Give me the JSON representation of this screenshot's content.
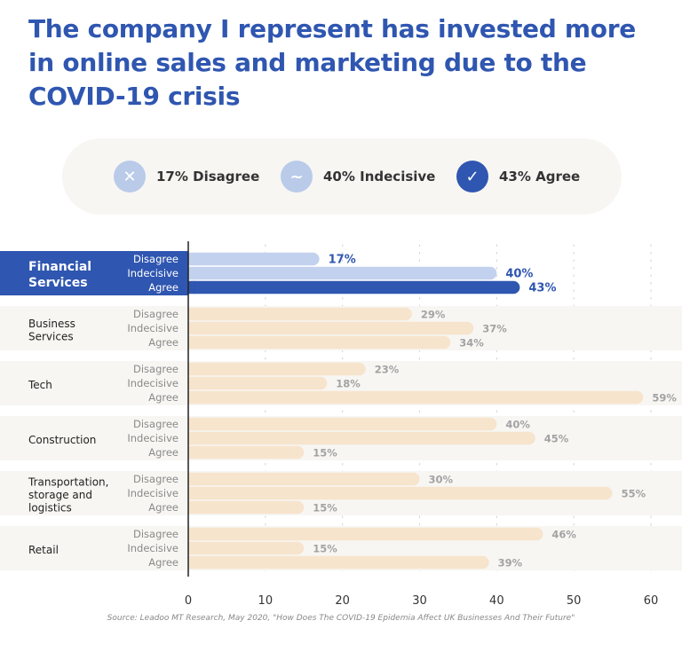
{
  "title": "The company I represent has invested more in online sales and marketing due to the COVID-19 crisis",
  "legend": [
    {
      "label": "17% Disagree",
      "icon": "x-icon",
      "glyph": "✕",
      "color": "#b9cbe9"
    },
    {
      "label": "40% Indecisive",
      "icon": "tilde-icon",
      "glyph": "~",
      "color": "#b9cbe9"
    },
    {
      "label": "43% Agree",
      "icon": "check-icon",
      "glyph": "✓",
      "color": "#2f56b0"
    }
  ],
  "colors": {
    "highlight": "#2f56b0",
    "highlight_light": "#c2d1ee",
    "bar": "#f7e4cc",
    "band": "#f7f6f3",
    "value_gray": "#a3a3a3",
    "label_gray": "#8a8a8a"
  },
  "chart_data": {
    "type": "bar",
    "orientation": "horizontal",
    "title": "The company I represent has invested more in online sales and marketing due to the COVID-19 crisis",
    "xlim": [
      0,
      60
    ],
    "xticks": [
      0,
      10,
      20,
      30,
      40,
      50,
      60
    ],
    "sub_categories": [
      "Disagree",
      "Indecisive",
      "Agree"
    ],
    "groups": [
      {
        "name": "Financial Services",
        "lines": [
          "Financial",
          "Services"
        ],
        "highlight": true,
        "values": [
          17,
          40,
          43
        ]
      },
      {
        "name": "Business Services",
        "lines": [
          "Business",
          "Services"
        ],
        "highlight": false,
        "values": [
          29,
          37,
          34
        ]
      },
      {
        "name": "Tech",
        "lines": [
          "Tech"
        ],
        "highlight": false,
        "values": [
          23,
          18,
          59
        ]
      },
      {
        "name": "Construction",
        "lines": [
          "Construction"
        ],
        "highlight": false,
        "values": [
          40,
          45,
          15
        ]
      },
      {
        "name": "Transportation, storage and logistics",
        "lines": [
          "Transportation,",
          "storage and",
          "logistics"
        ],
        "highlight": false,
        "values": [
          30,
          55,
          15
        ]
      },
      {
        "name": "Retail",
        "lines": [
          "Retail"
        ],
        "highlight": false,
        "values": [
          46,
          15,
          39
        ]
      }
    ],
    "value_suffix": "%"
  },
  "source": "Source: Leadoo MT Research, May 2020, \"How Does The COVID-19 Epidemia Affect UK Businesses And Their Future\""
}
